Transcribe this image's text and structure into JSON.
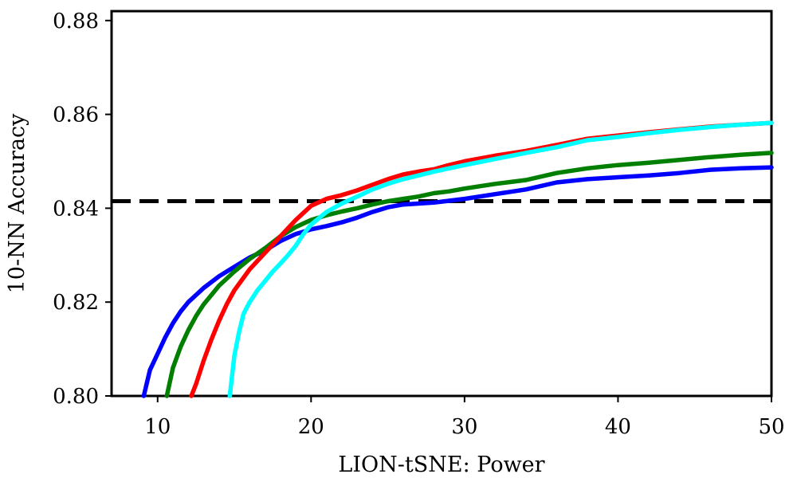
{
  "chart_data": {
    "type": "line",
    "title": "",
    "xlabel": "LION-tSNE: Power",
    "ylabel": "10-NN Accuracy",
    "xlim": [
      7,
      50
    ],
    "ylim": [
      0.8,
      0.882
    ],
    "xticks": [
      10,
      20,
      30,
      40,
      50
    ],
    "xtick_labels": [
      "10",
      "20",
      "30",
      "40",
      "50"
    ],
    "yticks": [
      0.8,
      0.82,
      0.84,
      0.86,
      0.88
    ],
    "ytick_labels": [
      "0.80",
      "0.82",
      "0.84",
      "0.86",
      "0.88"
    ],
    "grid": false,
    "legend": "none",
    "reference_line": {
      "y": 0.8415,
      "color": "#000000",
      "style": "dashed"
    },
    "series": [
      {
        "color": "#0000ff",
        "x": [
          9.1,
          9.5,
          10.0,
          10.5,
          11.0,
          11.5,
          12.0,
          12.5,
          13.0,
          14.0,
          15.0,
          16.0,
          17.0,
          18.0,
          19.0,
          20.0,
          21.0,
          22.0,
          23.0,
          24.0,
          25.0,
          26.0,
          27.0,
          28.0,
          29.0,
          30.0,
          32.0,
          34.0,
          36.0,
          38.0,
          40.0,
          42.0,
          44.0,
          46.0,
          48.0,
          50.0
        ],
        "y": [
          0.8,
          0.8055,
          0.809,
          0.8125,
          0.8155,
          0.818,
          0.82,
          0.8215,
          0.823,
          0.8255,
          0.8275,
          0.8295,
          0.831,
          0.833,
          0.8345,
          0.8355,
          0.8362,
          0.837,
          0.838,
          0.8392,
          0.8402,
          0.8408,
          0.841,
          0.8412,
          0.8416,
          0.842,
          0.843,
          0.844,
          0.8455,
          0.8462,
          0.8466,
          0.847,
          0.8475,
          0.8482,
          0.8485,
          0.8487
        ]
      },
      {
        "color": "#007f00",
        "x": [
          10.6,
          11.0,
          11.5,
          12.0,
          12.5,
          13.0,
          13.5,
          14.0,
          15.0,
          16.0,
          17.0,
          18.0,
          19.0,
          20.0,
          21.0,
          22.0,
          23.0,
          24.0,
          25.0,
          26.0,
          27.0,
          28.0,
          29.0,
          30.0,
          32.0,
          34.0,
          36.0,
          38.0,
          40.0,
          42.0,
          44.0,
          46.0,
          48.0,
          50.0
        ],
        "y": [
          0.8,
          0.806,
          0.8105,
          0.814,
          0.817,
          0.8195,
          0.8215,
          0.8235,
          0.8265,
          0.8292,
          0.8315,
          0.834,
          0.836,
          0.8375,
          0.8385,
          0.8393,
          0.84,
          0.8408,
          0.8415,
          0.842,
          0.8425,
          0.8432,
          0.8436,
          0.8442,
          0.8452,
          0.846,
          0.8475,
          0.8485,
          0.8492,
          0.8497,
          0.8503,
          0.8509,
          0.8514,
          0.8518
        ]
      },
      {
        "color": "#ff0000",
        "x": [
          12.2,
          12.5,
          13.0,
          13.5,
          14.0,
          14.5,
          15.0,
          16.0,
          17.0,
          18.0,
          19.0,
          20.0,
          21.0,
          22.0,
          23.0,
          24.0,
          25.0,
          26.0,
          27.0,
          28.0,
          29.0,
          30.0,
          32.0,
          34.0,
          36.0,
          38.0,
          40.0,
          42.0,
          44.0,
          46.0,
          48.0,
          50.0
        ],
        "y": [
          0.8,
          0.8025,
          0.8075,
          0.812,
          0.816,
          0.8195,
          0.8225,
          0.827,
          0.8305,
          0.834,
          0.8375,
          0.8405,
          0.842,
          0.8428,
          0.8438,
          0.845,
          0.8462,
          0.8472,
          0.8478,
          0.8483,
          0.8492,
          0.85,
          0.8512,
          0.8522,
          0.8535,
          0.8548,
          0.8555,
          0.8562,
          0.8568,
          0.8574,
          0.8578,
          0.8582
        ]
      },
      {
        "color": "#00ffff",
        "x": [
          14.7,
          15.0,
          15.3,
          15.6,
          16.0,
          16.5,
          17.0,
          17.5,
          18.0,
          18.5,
          19.0,
          19.5,
          20.0,
          21.0,
          22.0,
          23.0,
          24.0,
          25.0,
          26.0,
          27.0,
          28.0,
          29.0,
          30.0,
          32.0,
          34.0,
          36.0,
          38.0,
          40.0,
          42.0,
          44.0,
          46.0,
          48.0,
          50.0
        ],
        "y": [
          0.8,
          0.8085,
          0.8135,
          0.8175,
          0.82,
          0.8225,
          0.8245,
          0.8265,
          0.8282,
          0.83,
          0.832,
          0.8345,
          0.8365,
          0.8392,
          0.841,
          0.8425,
          0.844,
          0.8452,
          0.8462,
          0.847,
          0.8478,
          0.8485,
          0.8492,
          0.8505,
          0.8518,
          0.853,
          0.8545,
          0.8552,
          0.856,
          0.8567,
          0.8573,
          0.8578,
          0.8582
        ]
      }
    ]
  }
}
